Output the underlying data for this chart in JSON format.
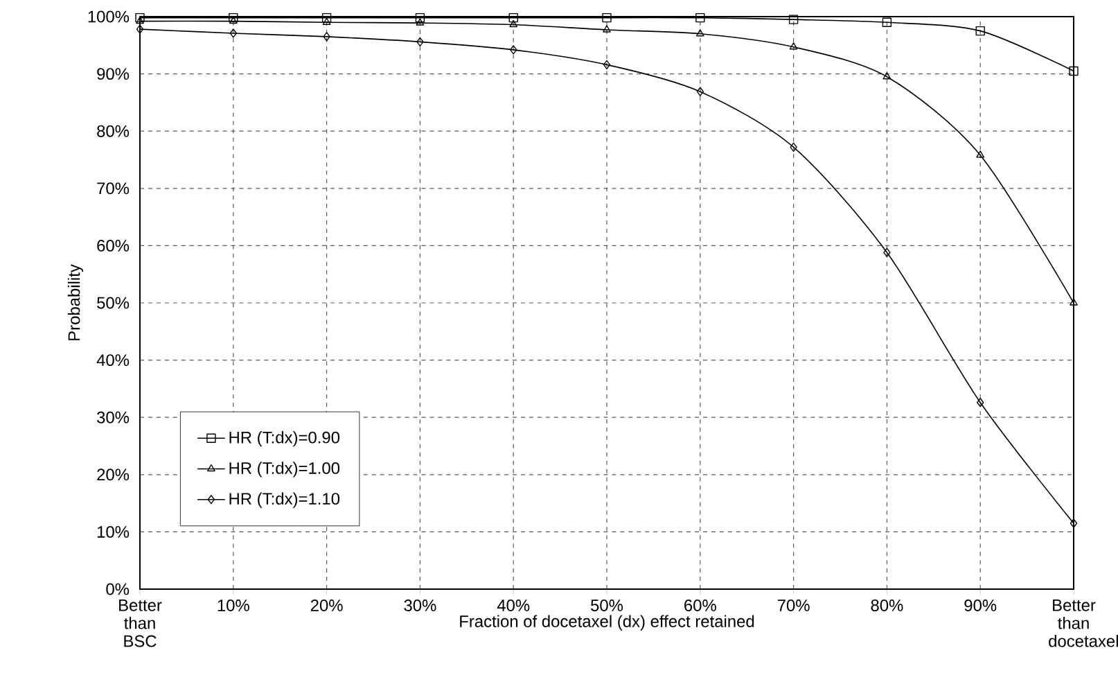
{
  "chart_data": {
    "type": "line",
    "xlabel": "Fraction of docetaxel (dx) effect retained",
    "ylabel": "Probability",
    "categories": [
      "Better than BSC",
      "10%",
      "20%",
      "30%",
      "40%",
      "50%",
      "60%",
      "70%",
      "80%",
      "90%",
      "Better than docetaxel"
    ],
    "ylim": [
      0,
      100
    ],
    "yticks": [
      {
        "value": 0,
        "label": "0%"
      },
      {
        "value": 10,
        "label": "10%"
      },
      {
        "value": 20,
        "label": "20%"
      },
      {
        "value": 30,
        "label": "30%"
      },
      {
        "value": 40,
        "label": "40%"
      },
      {
        "value": 50,
        "label": "50%"
      },
      {
        "value": 60,
        "label": "60%"
      },
      {
        "value": 70,
        "label": "70%"
      },
      {
        "value": 80,
        "label": "80%"
      },
      {
        "value": 90,
        "label": "90%"
      },
      {
        "value": 100,
        "label": "100%"
      }
    ],
    "grid": true,
    "legend": "bottom left",
    "line_style": "solid",
    "series": [
      {
        "name": "HR (T:dx)=0.90",
        "color": "#000000",
        "marker": "square",
        "values": [
          99.8,
          99.8,
          99.8,
          99.8,
          99.8,
          99.8,
          99.8,
          99.5,
          99,
          97.5,
          90.5
        ]
      },
      {
        "name": "HR (T:dx)=1.00",
        "color": "#000000",
        "marker": "triangle",
        "values": [
          99.2,
          99.2,
          99,
          98.9,
          98.6,
          97.7,
          97,
          94.7,
          89.5,
          75.8,
          50
        ]
      },
      {
        "name": "HR (T:dx)=1.10",
        "color": "#000000",
        "marker": "diamond",
        "values": [
          97.8,
          97.1,
          96.5,
          95.6,
          94.2,
          91.6,
          86.9,
          77.2,
          58.8,
          32.6,
          11.5
        ]
      }
    ]
  }
}
